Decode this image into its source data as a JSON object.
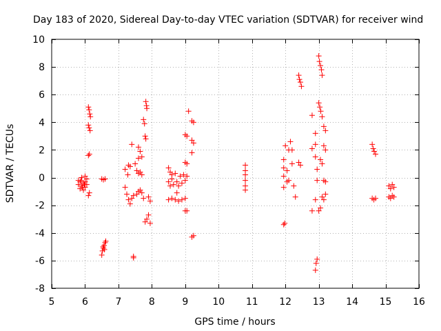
{
  "chart_data": {
    "type": "scatter",
    "title": "Day 183 of 2020, Sidereal Day-to-day VTEC variation (SDTVAR) for receiver wind",
    "xlabel": "GPS time / hours",
    "ylabel": "SDTVAR / TECUs",
    "xlim": [
      5,
      16
    ],
    "ylim": [
      -8,
      10
    ],
    "xticks": [
      5,
      6,
      7,
      8,
      9,
      10,
      11,
      12,
      13,
      14,
      15,
      16
    ],
    "yticks": [
      -8,
      -6,
      -4,
      -2,
      0,
      2,
      4,
      6,
      8,
      10
    ],
    "marker": "+",
    "marker_color": "#ff0000",
    "series": [
      {
        "name": "receiver wind",
        "points": [
          [
            5.8,
            -0.2
          ],
          [
            5.8,
            -0.5
          ],
          [
            5.85,
            -0.8
          ],
          [
            5.85,
            -0.3
          ],
          [
            5.9,
            0.0
          ],
          [
            5.9,
            -0.6
          ],
          [
            5.95,
            -0.4
          ],
          [
            5.95,
            -0.9
          ],
          [
            6.0,
            0.1
          ],
          [
            6.0,
            -0.3
          ],
          [
            6.0,
            -0.7
          ],
          [
            6.05,
            -0.1
          ],
          [
            6.05,
            -0.5
          ],
          [
            5.88,
            -0.2
          ],
          [
            5.92,
            -0.7
          ],
          [
            5.98,
            -0.5
          ],
          [
            6.1,
            5.1
          ],
          [
            6.12,
            4.9
          ],
          [
            6.14,
            4.6
          ],
          [
            6.16,
            4.4
          ],
          [
            6.1,
            3.8
          ],
          [
            6.12,
            3.6
          ],
          [
            6.15,
            3.4
          ],
          [
            6.1,
            1.6
          ],
          [
            6.13,
            1.7
          ],
          [
            6.1,
            -1.3
          ],
          [
            6.13,
            -1.1
          ],
          [
            6.5,
            -0.1
          ],
          [
            6.55,
            -0.15
          ],
          [
            6.6,
            -0.1
          ],
          [
            6.5,
            -5.6
          ],
          [
            6.52,
            -5.3
          ],
          [
            6.55,
            -5.1
          ],
          [
            6.57,
            -4.9
          ],
          [
            6.6,
            -4.7
          ],
          [
            6.62,
            -4.6
          ],
          [
            6.54,
            -5.0
          ],
          [
            6.58,
            -5.2
          ],
          [
            7.2,
            0.6
          ],
          [
            7.2,
            -0.7
          ],
          [
            7.25,
            -1.2
          ],
          [
            7.3,
            0.9
          ],
          [
            7.3,
            -1.6
          ],
          [
            7.35,
            0.8
          ],
          [
            7.35,
            -1.9
          ],
          [
            7.4,
            -1.5
          ],
          [
            7.45,
            -1.3
          ],
          [
            7.4,
            2.4
          ],
          [
            7.45,
            -5.7
          ],
          [
            7.45,
            -5.8
          ],
          [
            7.28,
            0.2
          ],
          [
            7.5,
            1.0
          ],
          [
            7.55,
            0.5
          ],
          [
            7.55,
            -1.2
          ],
          [
            7.6,
            0.3
          ],
          [
            7.6,
            -1.0
          ],
          [
            7.65,
            0.4
          ],
          [
            7.65,
            -0.9
          ],
          [
            7.7,
            0.2
          ],
          [
            7.7,
            -1.1
          ],
          [
            7.75,
            -1.5
          ],
          [
            7.6,
            2.2
          ],
          [
            7.65,
            1.9
          ],
          [
            7.6,
            1.4
          ],
          [
            7.7,
            1.5
          ],
          [
            7.75,
            4.2
          ],
          [
            7.78,
            3.9
          ],
          [
            7.8,
            3.0
          ],
          [
            7.82,
            2.8
          ],
          [
            7.82,
            5.5
          ],
          [
            7.84,
            5.2
          ],
          [
            7.85,
            5.0
          ],
          [
            7.8,
            -3.2
          ],
          [
            7.85,
            -3.0
          ],
          [
            7.9,
            -2.7
          ],
          [
            7.95,
            -3.3
          ],
          [
            7.95,
            -1.7
          ],
          [
            7.9,
            -1.4
          ],
          [
            8.5,
            0.7
          ],
          [
            8.5,
            -0.3
          ],
          [
            8.5,
            -1.6
          ],
          [
            8.55,
            0.4
          ],
          [
            8.55,
            -0.6
          ],
          [
            8.6,
            0.2
          ],
          [
            8.6,
            -0.1
          ],
          [
            8.65,
            -0.5
          ],
          [
            8.7,
            0.3
          ],
          [
            8.75,
            -0.3
          ],
          [
            8.8,
            -0.6
          ],
          [
            8.85,
            0.1
          ],
          [
            8.9,
            -0.4
          ],
          [
            8.95,
            0.2
          ],
          [
            9.0,
            -0.2
          ],
          [
            9.05,
            0.1
          ],
          [
            8.7,
            -1.6
          ],
          [
            8.8,
            -1.7
          ],
          [
            8.9,
            -1.6
          ],
          [
            9.0,
            -1.5
          ],
          [
            9.0,
            -2.4
          ],
          [
            9.05,
            -2.4
          ],
          [
            9.0,
            1.1
          ],
          [
            9.05,
            1.0
          ],
          [
            9.0,
            3.1
          ],
          [
            9.05,
            3.0
          ],
          [
            9.1,
            4.8
          ],
          [
            8.6,
            -1.5
          ],
          [
            8.75,
            -1.1
          ],
          [
            9.2,
            4.1
          ],
          [
            9.25,
            4.0
          ],
          [
            9.2,
            2.7
          ],
          [
            9.25,
            2.5
          ],
          [
            9.2,
            1.8
          ],
          [
            9.25,
            -4.2
          ],
          [
            9.2,
            -4.3
          ],
          [
            10.8,
            0.9
          ],
          [
            10.8,
            0.5
          ],
          [
            10.8,
            0.2
          ],
          [
            10.8,
            -0.2
          ],
          [
            10.8,
            -0.6
          ],
          [
            10.8,
            -0.9
          ],
          [
            11.95,
            1.3
          ],
          [
            11.95,
            0.7
          ],
          [
            11.95,
            0.1
          ],
          [
            11.95,
            -0.7
          ],
          [
            11.95,
            -3.4
          ],
          [
            11.98,
            -3.3
          ],
          [
            12.0,
            2.3
          ],
          [
            12.05,
            0.5
          ],
          [
            12.1,
            2.0
          ],
          [
            12.15,
            2.6
          ],
          [
            12.2,
            2.0
          ],
          [
            12.2,
            1.0
          ],
          [
            12.25,
            -0.6
          ],
          [
            12.3,
            -1.4
          ],
          [
            12.4,
            7.4
          ],
          [
            12.42,
            7.1
          ],
          [
            12.45,
            6.9
          ],
          [
            12.48,
            6.6
          ],
          [
            12.4,
            1.1
          ],
          [
            12.45,
            0.9
          ],
          [
            12.05,
            -0.3
          ],
          [
            12.1,
            -0.2
          ],
          [
            12.8,
            4.5
          ],
          [
            12.8,
            2.1
          ],
          [
            12.8,
            -2.4
          ],
          [
            12.9,
            1.5
          ],
          [
            12.9,
            3.2
          ],
          [
            12.9,
            2.4
          ],
          [
            12.95,
            0.6
          ],
          [
            12.95,
            -0.2
          ],
          [
            12.9,
            -1.6
          ],
          [
            12.95,
            -5.9
          ],
          [
            12.92,
            -6.2
          ],
          [
            12.9,
            -6.7
          ],
          [
            13.0,
            8.8
          ],
          [
            13.02,
            8.4
          ],
          [
            13.05,
            8.1
          ],
          [
            13.08,
            7.8
          ],
          [
            13.1,
            7.4
          ],
          [
            13.0,
            5.4
          ],
          [
            13.03,
            5.1
          ],
          [
            13.06,
            4.8
          ],
          [
            13.1,
            4.4
          ],
          [
            13.15,
            3.7
          ],
          [
            13.2,
            3.4
          ],
          [
            13.05,
            1.3
          ],
          [
            13.1,
            1.0
          ],
          [
            13.15,
            2.3
          ],
          [
            13.2,
            2.0
          ],
          [
            13.15,
            -0.2
          ],
          [
            13.2,
            -0.3
          ],
          [
            13.1,
            -1.4
          ],
          [
            13.15,
            -1.6
          ],
          [
            13.2,
            -1.2
          ],
          [
            13.05,
            -2.2
          ],
          [
            13.0,
            -2.4
          ],
          [
            14.6,
            2.4
          ],
          [
            14.63,
            2.1
          ],
          [
            14.66,
            1.9
          ],
          [
            14.7,
            1.7
          ],
          [
            14.6,
            -1.5
          ],
          [
            14.65,
            -1.6
          ],
          [
            14.7,
            -1.5
          ],
          [
            15.1,
            -0.6
          ],
          [
            15.15,
            -0.8
          ],
          [
            15.2,
            -0.5
          ],
          [
            15.25,
            -0.7
          ],
          [
            15.1,
            -1.4
          ],
          [
            15.15,
            -1.5
          ],
          [
            15.2,
            -1.3
          ],
          [
            15.25,
            -1.4
          ]
        ]
      }
    ]
  }
}
